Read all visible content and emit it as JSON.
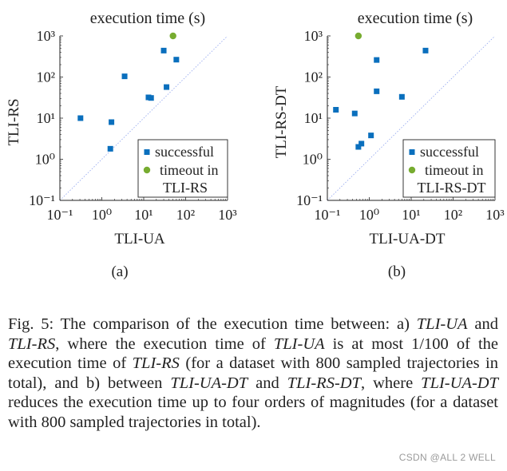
{
  "chart_data": [
    {
      "type": "scatter",
      "panel_label": "(a)",
      "title": "execution time (s)",
      "xlabel": "TLI-UA",
      "ylabel": "TLI-RS",
      "x_scale": "log",
      "y_scale": "log",
      "xlim": [
        0.1,
        1000
      ],
      "ylim": [
        0.1,
        1000
      ],
      "tick_labels": [
        "10⁻¹",
        "10⁰",
        "10¹",
        "10²",
        "10³"
      ],
      "reference_line": "y = x",
      "legend_position": "bottom-right",
      "series": [
        {
          "name": "successful",
          "marker": "square",
          "color": "#0a6fbd",
          "points": [
            {
              "x": 0.31,
              "y": 10
            },
            {
              "x": 1.7,
              "y": 8
            },
            {
              "x": 1.6,
              "y": 1.8
            },
            {
              "x": 3.5,
              "y": 104
            },
            {
              "x": 13,
              "y": 32
            },
            {
              "x": 15,
              "y": 31
            },
            {
              "x": 30,
              "y": 440
            },
            {
              "x": 35,
              "y": 57
            },
            {
              "x": 60,
              "y": 265
            }
          ]
        },
        {
          "name": "timeout in TLI-RS",
          "name_lines": [
            "timeout in",
            "TLI-RS"
          ],
          "marker": "circle",
          "color": "#77ac30",
          "points": [
            {
              "x": 50,
              "y": 1000
            }
          ]
        }
      ]
    },
    {
      "type": "scatter",
      "panel_label": "(b)",
      "title": "execution time (s)",
      "xlabel": "TLI-UA-DT",
      "ylabel": "TLI-RS-DT",
      "x_scale": "log",
      "y_scale": "log",
      "xlim": [
        0.1,
        1000
      ],
      "ylim": [
        0.1,
        1000
      ],
      "tick_labels": [
        "10⁻¹",
        "10⁰",
        "10¹",
        "10²",
        "10³"
      ],
      "reference_line": "y = x",
      "legend_position": "bottom-right",
      "series": [
        {
          "name": "successful",
          "marker": "square",
          "color": "#0a6fbd",
          "points": [
            {
              "x": 0.16,
              "y": 16
            },
            {
              "x": 0.45,
              "y": 13
            },
            {
              "x": 0.55,
              "y": 2
            },
            {
              "x": 0.65,
              "y": 2.4
            },
            {
              "x": 1.1,
              "y": 3.8
            },
            {
              "x": 1.5,
              "y": 45
            },
            {
              "x": 1.5,
              "y": 260
            },
            {
              "x": 6,
              "y": 33
            },
            {
              "x": 22,
              "y": 440
            }
          ]
        },
        {
          "name": "timeout in TLI-RS-DT",
          "name_lines": [
            "timeout in",
            "TLI-RS-DT"
          ],
          "marker": "circle",
          "color": "#77ac30",
          "points": [
            {
              "x": 0.55,
              "y": 1000
            }
          ]
        }
      ]
    }
  ],
  "caption": {
    "parts": [
      {
        "text": "Fig. 5: The comparison of the execution time between: a) ",
        "italic": false
      },
      {
        "text": "TLI-UA",
        "italic": true
      },
      {
        "text": " and ",
        "italic": false
      },
      {
        "text": "TLI-RS",
        "italic": true
      },
      {
        "text": ", where the execution time of ",
        "italic": false
      },
      {
        "text": "TLI-UA",
        "italic": true
      },
      {
        "text": " is at most ",
        "italic": false
      },
      {
        "text": "1/100",
        "italic": false
      },
      {
        "text": " of the execution time of ",
        "italic": false
      },
      {
        "text": "TLI-RS",
        "italic": true
      },
      {
        "text": " (for a dataset with 800 sampled trajectories in total), and b) between ",
        "italic": false
      },
      {
        "text": "TLI-UA-DT",
        "italic": true
      },
      {
        "text": " and ",
        "italic": false
      },
      {
        "text": "TLI-RS-DT",
        "italic": true
      },
      {
        "text": ", where ",
        "italic": false
      },
      {
        "text": "TLI-UA-DT",
        "italic": true
      },
      {
        "text": " reduces the execution time up to four orders of magnitudes (for a dataset with 800 sampled trajectories in total).",
        "italic": false
      }
    ]
  },
  "watermark": "CSDN @ALL 2 WELL"
}
